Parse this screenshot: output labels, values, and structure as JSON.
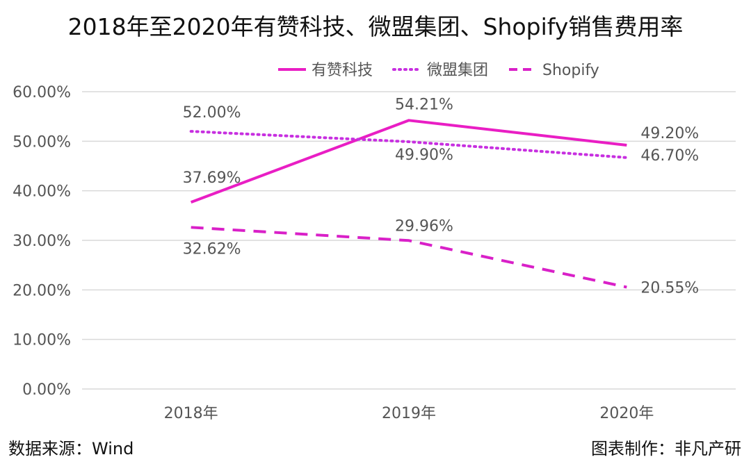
{
  "chart_data": {
    "type": "line",
    "title": "2018年至2020年有赞科技、微盟集团、Shopify销售费用率",
    "categories": [
      "2018年",
      "2019年",
      "2020年"
    ],
    "ylim": [
      0,
      60
    ],
    "yticks": [
      "0.00%",
      "10.00%",
      "20.00%",
      "30.00%",
      "40.00%",
      "50.00%",
      "60.00%"
    ],
    "grid": true,
    "legend_position": "top-right",
    "series": [
      {
        "name": "有赞科技",
        "values": [
          37.69,
          54.21,
          49.2
        ],
        "labels": [
          "37.69%",
          "54.21%",
          "49.20%"
        ],
        "color": "#e91ec4",
        "style": "solid"
      },
      {
        "name": "微盟集团",
        "values": [
          52.0,
          49.9,
          46.7
        ],
        "labels": [
          "52.00%",
          "49.90%",
          "46.70%"
        ],
        "color": "#c72fe0",
        "style": "dotted"
      },
      {
        "name": "Shopify",
        "values": [
          32.62,
          29.96,
          20.55
        ],
        "labels": [
          "32.62%",
          "29.96%",
          "20.55%"
        ],
        "color": "#d920c8",
        "style": "dashed"
      }
    ]
  },
  "footer": {
    "source": "数据来源：Wind",
    "credit": "图表制作：非凡产研"
  }
}
